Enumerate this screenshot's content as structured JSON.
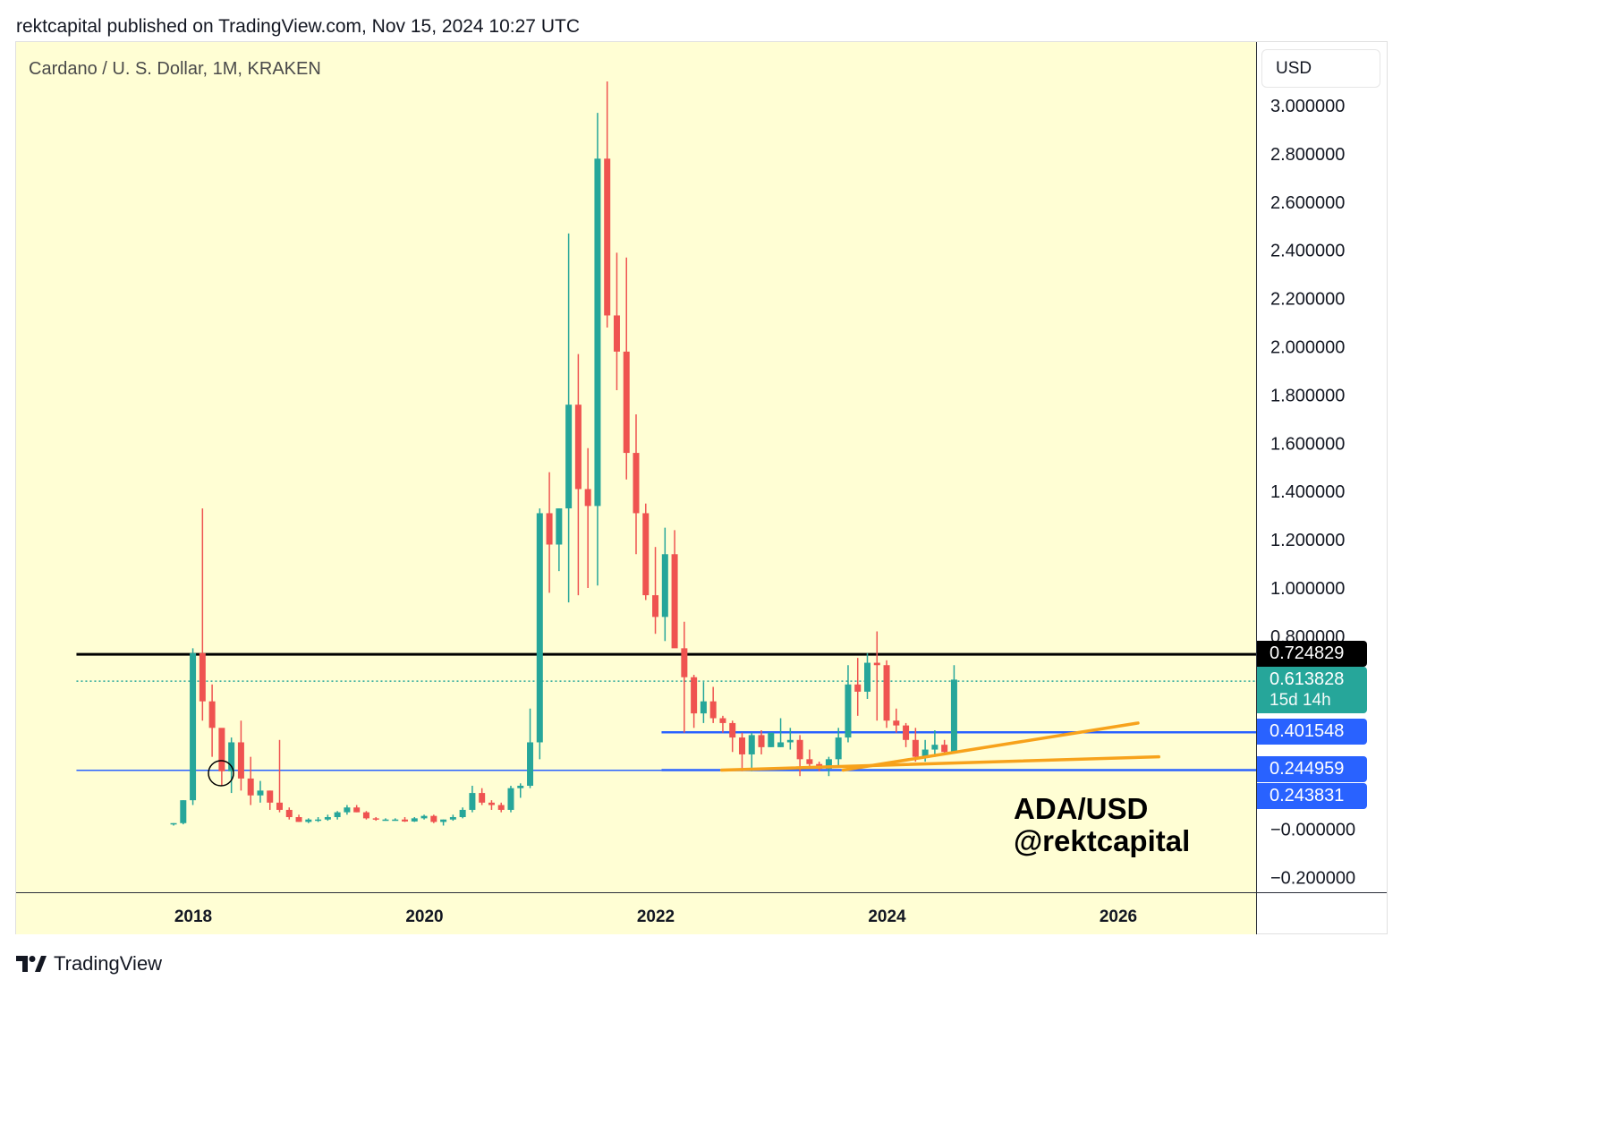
{
  "header": {
    "published_line": "rektcapital published on TradingView.com, Nov 15, 2024 10:27 UTC"
  },
  "chart": {
    "symbol_title": "Cardano / U. S. Dollar, 1M, KRAKEN",
    "currency_label": "USD",
    "annotation_line1": "ADA/USD",
    "annotation_line2": "@rektcapital",
    "badges": {
      "resistance": "0.724829",
      "current_price": "0.613828",
      "countdown": "15d 14h",
      "range_mid": "0.401548",
      "range_low_1": "0.244959",
      "range_low_2": "0.243831"
    }
  },
  "footer": {
    "brand": "TradingView"
  },
  "colors": {
    "background": "#fffed4",
    "up": "#26a69a",
    "down": "#ef5350",
    "resistance_line": "#000000",
    "support_lines": "#2962ff",
    "trendlines": "#f7a21b",
    "current_price_line": "#26a69a"
  },
  "chart_data": {
    "type": "candlestick",
    "title": "Cardano / U. S. Dollar, 1M, KRAKEN",
    "ylim": [
      -0.2,
      3.0
    ],
    "y_ticks": [
      "3.000000",
      "2.800000",
      "2.600000",
      "2.400000",
      "2.200000",
      "2.000000",
      "1.800000",
      "1.600000",
      "1.400000",
      "1.200000",
      "1.000000",
      "0.800000",
      "−0.000000",
      "−0.200000"
    ],
    "x_ticks": [
      "2018",
      "2020",
      "2022",
      "2024",
      "2026"
    ],
    "x_tick_values": [
      2018,
      2020,
      2022,
      2024,
      2026
    ],
    "grid": false,
    "horizontal_levels": [
      {
        "value": 0.724829,
        "color": "#000000",
        "style": "solid",
        "from": 2016.99
      },
      {
        "value": 0.613828,
        "color": "#26a69a",
        "style": "dotted",
        "from": 2016.99
      },
      {
        "value": 0.401548,
        "color": "#2962ff",
        "style": "solid",
        "from": 2022.05
      },
      {
        "value": 0.244959,
        "color": "#2962ff",
        "style": "solid",
        "from": 2022.05
      },
      {
        "value": 0.243831,
        "color": "#2962ff",
        "style": "solid",
        "from": 2016.99,
        "to": 2022.05
      }
    ],
    "trendlines": [
      {
        "x1": 2023.62,
        "y1": 0.245,
        "x2": 2026.17,
        "y2": 0.44
      },
      {
        "x1": 2022.57,
        "y1": 0.245,
        "x2": 2026.35,
        "y2": 0.3
      }
    ],
    "x_start": 2017.83,
    "x_step": 0.08333,
    "candles": [
      [
        0.02,
        0.025,
        0.015,
        0.025
      ],
      [
        0.025,
        0.12,
        0.02,
        0.12
      ],
      [
        0.12,
        0.75,
        0.1,
        0.73
      ],
      [
        0.73,
        1.33,
        0.45,
        0.53
      ],
      [
        0.53,
        0.6,
        0.3,
        0.42
      ],
      [
        0.42,
        0.4,
        0.18,
        0.24
      ],
      [
        0.24,
        0.38,
        0.15,
        0.36
      ],
      [
        0.36,
        0.45,
        0.16,
        0.21
      ],
      [
        0.21,
        0.3,
        0.1,
        0.14
      ],
      [
        0.14,
        0.2,
        0.11,
        0.16
      ],
      [
        0.16,
        0.16,
        0.08,
        0.11
      ],
      [
        0.11,
        0.37,
        0.07,
        0.08
      ],
      [
        0.08,
        0.09,
        0.04,
        0.05
      ],
      [
        0.05,
        0.06,
        0.03,
        0.03
      ],
      [
        0.03,
        0.045,
        0.025,
        0.04
      ],
      [
        0.04,
        0.05,
        0.03,
        0.04
      ],
      [
        0.04,
        0.06,
        0.035,
        0.05
      ],
      [
        0.05,
        0.075,
        0.04,
        0.07
      ],
      [
        0.07,
        0.1,
        0.06,
        0.09
      ],
      [
        0.09,
        0.1,
        0.07,
        0.07
      ],
      [
        0.07,
        0.075,
        0.04,
        0.045
      ],
      [
        0.045,
        0.05,
        0.035,
        0.04
      ],
      [
        0.04,
        0.045,
        0.035,
        0.04
      ],
      [
        0.04,
        0.045,
        0.035,
        0.04
      ],
      [
        0.04,
        0.05,
        0.03,
        0.032
      ],
      [
        0.032,
        0.05,
        0.03,
        0.045
      ],
      [
        0.045,
        0.06,
        0.04,
        0.055
      ],
      [
        0.055,
        0.06,
        0.025,
        0.03
      ],
      [
        0.03,
        0.04,
        0.015,
        0.04
      ],
      [
        0.04,
        0.06,
        0.035,
        0.05
      ],
      [
        0.05,
        0.09,
        0.045,
        0.08
      ],
      [
        0.08,
        0.18,
        0.07,
        0.15
      ],
      [
        0.15,
        0.17,
        0.1,
        0.11
      ],
      [
        0.11,
        0.12,
        0.08,
        0.1
      ],
      [
        0.1,
        0.11,
        0.07,
        0.08
      ],
      [
        0.08,
        0.18,
        0.07,
        0.17
      ],
      [
        0.17,
        0.19,
        0.13,
        0.18
      ],
      [
        0.18,
        0.5,
        0.17,
        0.36
      ],
      [
        0.36,
        1.33,
        0.29,
        1.31
      ],
      [
        1.31,
        1.48,
        0.98,
        1.18
      ],
      [
        1.18,
        1.33,
        1.07,
        1.33
      ],
      [
        1.33,
        2.47,
        0.94,
        1.76
      ],
      [
        1.76,
        1.97,
        0.97,
        1.41
      ],
      [
        1.41,
        1.58,
        1.0,
        1.34
      ],
      [
        1.34,
        2.97,
        1.01,
        2.78
      ],
      [
        2.78,
        3.1,
        2.08,
        2.13
      ],
      [
        2.13,
        2.39,
        1.82,
        1.98
      ],
      [
        1.98,
        2.37,
        1.45,
        1.56
      ],
      [
        1.56,
        1.72,
        1.14,
        1.31
      ],
      [
        1.31,
        1.35,
        0.95,
        0.97
      ],
      [
        0.97,
        1.17,
        0.81,
        0.88
      ],
      [
        0.88,
        1.25,
        0.78,
        1.14
      ],
      [
        1.14,
        1.24,
        0.76,
        0.75
      ],
      [
        0.75,
        0.86,
        0.4,
        0.63
      ],
      [
        0.63,
        0.64,
        0.42,
        0.48
      ],
      [
        0.48,
        0.61,
        0.44,
        0.53
      ],
      [
        0.53,
        0.59,
        0.44,
        0.46
      ],
      [
        0.46,
        0.47,
        0.4,
        0.44
      ],
      [
        0.44,
        0.45,
        0.32,
        0.38
      ],
      [
        0.38,
        0.4,
        0.24,
        0.31
      ],
      [
        0.31,
        0.4,
        0.24,
        0.39
      ],
      [
        0.39,
        0.41,
        0.31,
        0.34
      ],
      [
        0.34,
        0.4,
        0.34,
        0.4
      ],
      [
        0.34,
        0.46,
        0.34,
        0.36
      ],
      [
        0.36,
        0.42,
        0.33,
        0.37
      ],
      [
        0.37,
        0.39,
        0.22,
        0.29
      ],
      [
        0.29,
        0.33,
        0.25,
        0.27
      ],
      [
        0.27,
        0.28,
        0.24,
        0.25
      ],
      [
        0.25,
        0.3,
        0.22,
        0.29
      ],
      [
        0.29,
        0.42,
        0.26,
        0.38
      ],
      [
        0.38,
        0.68,
        0.36,
        0.6
      ],
      [
        0.6,
        0.71,
        0.47,
        0.57
      ],
      [
        0.57,
        0.73,
        0.54,
        0.69
      ],
      [
        0.69,
        0.82,
        0.45,
        0.68
      ],
      [
        0.68,
        0.7,
        0.42,
        0.45
      ],
      [
        0.45,
        0.5,
        0.4,
        0.43
      ],
      [
        0.43,
        0.44,
        0.34,
        0.37
      ],
      [
        0.37,
        0.42,
        0.28,
        0.3
      ],
      [
        0.3,
        0.37,
        0.28,
        0.33
      ],
      [
        0.33,
        0.41,
        0.3,
        0.35
      ],
      [
        0.35,
        0.37,
        0.31,
        0.32
      ],
      [
        0.32,
        0.68,
        0.32,
        0.62
      ]
    ]
  }
}
